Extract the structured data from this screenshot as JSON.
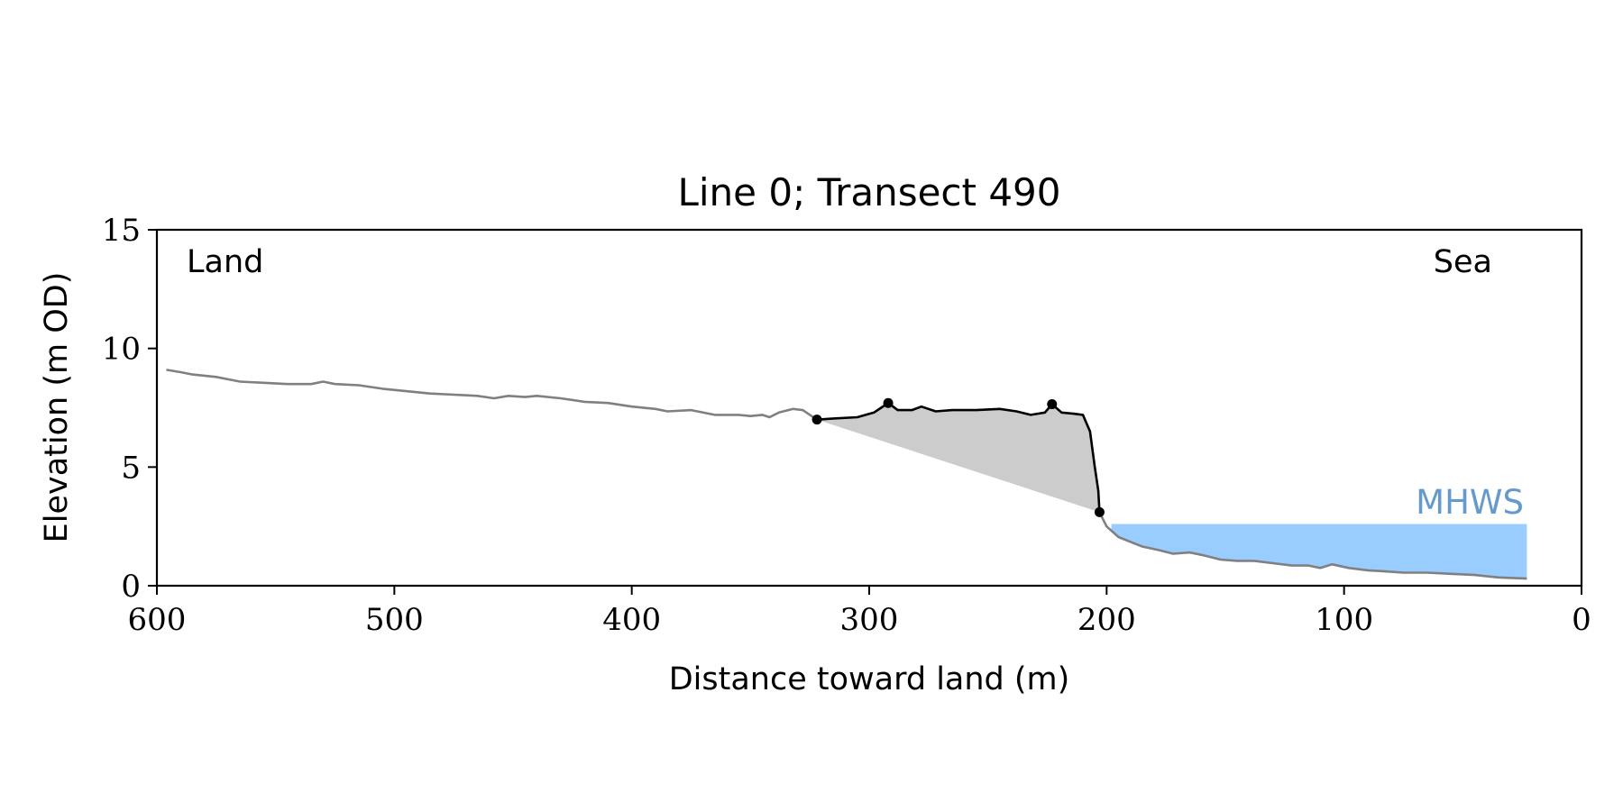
{
  "chart_data": {
    "type": "area",
    "title": "Line 0; Transect 490",
    "xlabel": "Distance toward land (m)",
    "ylabel": "Elevation (m OD)",
    "xlim": [
      600,
      0
    ],
    "ylim": [
      0,
      15
    ],
    "x_ticks": [
      "600",
      "500",
      "400",
      "300",
      "200",
      "100",
      "0"
    ],
    "y_ticks": [
      "0",
      "5",
      "10",
      "15"
    ],
    "annotations": {
      "land": "Land",
      "sea": "Sea",
      "mhws": "MHWS"
    },
    "mhws": {
      "level": 2.6,
      "x_range": [
        198,
        23
      ]
    },
    "colors": {
      "profile": "#808080",
      "feature": "#000000",
      "feature_fill": "#cccccc",
      "water": "#99ccff",
      "mhws_text": "#6699cc"
    },
    "series": [
      {
        "role": "terrain-profile",
        "points": [
          [
            596,
            9.1
          ],
          [
            590,
            9.0
          ],
          [
            585,
            8.9
          ],
          [
            575,
            8.8
          ],
          [
            565,
            8.6
          ],
          [
            555,
            8.55
          ],
          [
            545,
            8.5
          ],
          [
            535,
            8.5
          ],
          [
            530,
            8.6
          ],
          [
            525,
            8.5
          ],
          [
            515,
            8.45
          ],
          [
            505,
            8.3
          ],
          [
            495,
            8.2
          ],
          [
            485,
            8.1
          ],
          [
            475,
            8.05
          ],
          [
            465,
            8.0
          ],
          [
            458,
            7.9
          ],
          [
            452,
            8.0
          ],
          [
            445,
            7.95
          ],
          [
            440,
            8.0
          ],
          [
            430,
            7.9
          ],
          [
            420,
            7.75
          ],
          [
            410,
            7.7
          ],
          [
            400,
            7.55
          ],
          [
            390,
            7.45
          ],
          [
            385,
            7.35
          ],
          [
            375,
            7.4
          ],
          [
            365,
            7.2
          ],
          [
            355,
            7.2
          ],
          [
            350,
            7.15
          ],
          [
            345,
            7.2
          ],
          [
            342,
            7.1
          ],
          [
            338,
            7.3
          ],
          [
            332,
            7.45
          ],
          [
            328,
            7.4
          ],
          [
            325,
            7.2
          ],
          [
            322,
            7.0
          ]
        ]
      },
      {
        "role": "dune-feature",
        "points": [
          [
            322,
            7.0
          ],
          [
            315,
            7.05
          ],
          [
            305,
            7.1
          ],
          [
            298,
            7.3
          ],
          [
            295,
            7.5
          ],
          [
            292,
            7.7
          ],
          [
            288,
            7.4
          ],
          [
            282,
            7.4
          ],
          [
            278,
            7.55
          ],
          [
            272,
            7.35
          ],
          [
            265,
            7.4
          ],
          [
            255,
            7.4
          ],
          [
            245,
            7.45
          ],
          [
            238,
            7.35
          ],
          [
            232,
            7.2
          ],
          [
            226,
            7.3
          ],
          [
            223,
            7.65
          ],
          [
            219,
            7.3
          ],
          [
            214,
            7.25
          ],
          [
            210,
            7.2
          ],
          [
            207,
            6.5
          ],
          [
            205,
            5.0
          ],
          [
            203.5,
            4.0
          ],
          [
            203,
            3.1
          ]
        ]
      },
      {
        "role": "nearshore-profile",
        "points": [
          [
            203,
            3.1
          ],
          [
            200,
            2.5
          ],
          [
            195,
            2.05
          ],
          [
            190,
            1.85
          ],
          [
            185,
            1.65
          ],
          [
            178,
            1.5
          ],
          [
            172,
            1.35
          ],
          [
            165,
            1.4
          ],
          [
            160,
            1.3
          ],
          [
            152,
            1.1
          ],
          [
            145,
            1.05
          ],
          [
            138,
            1.05
          ],
          [
            130,
            0.95
          ],
          [
            122,
            0.85
          ],
          [
            115,
            0.85
          ],
          [
            110,
            0.75
          ],
          [
            105,
            0.9
          ],
          [
            98,
            0.75
          ],
          [
            90,
            0.65
          ],
          [
            82,
            0.6
          ],
          [
            75,
            0.55
          ],
          [
            65,
            0.55
          ],
          [
            55,
            0.5
          ],
          [
            45,
            0.45
          ],
          [
            35,
            0.35
          ],
          [
            23,
            0.3
          ]
        ]
      }
    ],
    "feature_markers": [
      [
        322,
        7.0
      ],
      [
        292,
        7.7
      ],
      [
        223,
        7.65
      ],
      [
        203,
        3.1
      ]
    ]
  }
}
